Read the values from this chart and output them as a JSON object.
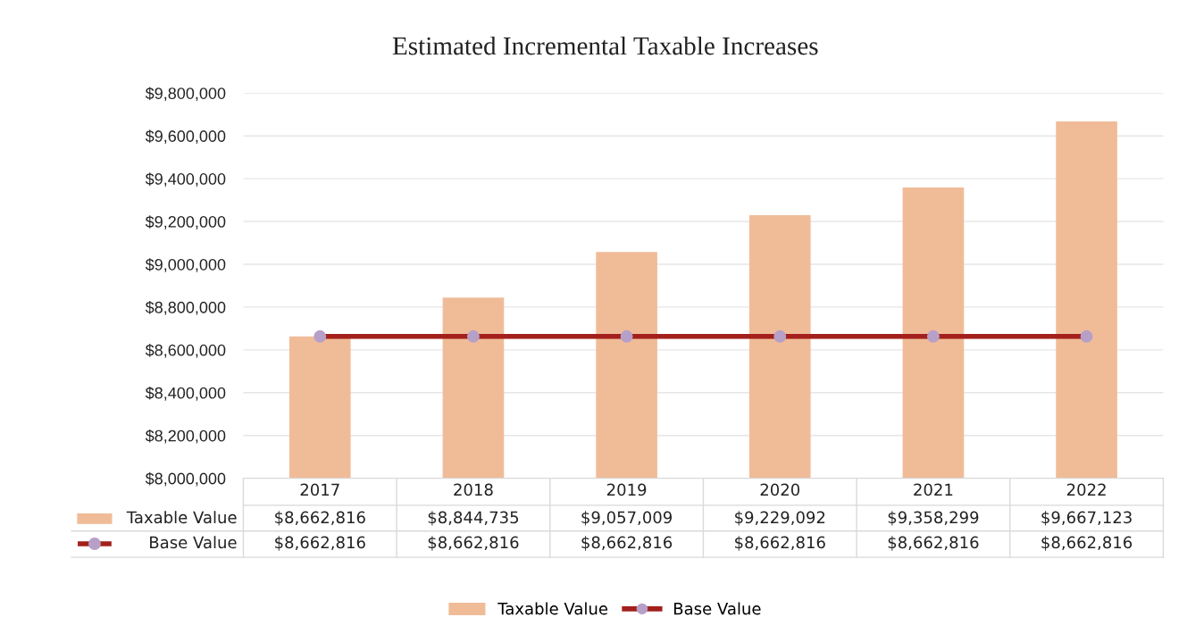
{
  "chart_data": {
    "type": "bar",
    "title": "Estimated Incremental Taxable Increases",
    "categories": [
      "2017",
      "2018",
      "2019",
      "2020",
      "2021",
      "2022"
    ],
    "series": [
      {
        "name": "Taxable Value",
        "color": "#f0bc98",
        "values": [
          8662816,
          8844735,
          9057009,
          9229092,
          9358299,
          9667123
        ],
        "value_labels": [
          "$8,662,816",
          "$8,844,735",
          "$9,057,009",
          "$9,229,092",
          "$9,358,299",
          "$9,667,123"
        ]
      },
      {
        "name": "Base Value",
        "type": "line",
        "color": "#a3201c",
        "marker": "circle",
        "values": [
          8662816,
          8662816,
          8662816,
          8662816,
          8662816,
          8662816
        ],
        "value_labels": [
          "$8,662,816",
          "$8,662,816",
          "$8,662,816",
          "$8,662,816",
          "$8,662,816",
          "$8,662,816"
        ]
      }
    ],
    "ylim": [
      8000000,
      9800000
    ],
    "yticks": [
      {
        "value": 8000000,
        "label": "$8,000,000"
      },
      {
        "value": 8200000,
        "label": "$8,200,000"
      },
      {
        "value": 8400000,
        "label": "$8,400,000"
      },
      {
        "value": 8600000,
        "label": "$8,600,000"
      },
      {
        "value": 8800000,
        "label": "$8,800,000"
      },
      {
        "value": 9000000,
        "label": "$9,000,000"
      },
      {
        "value": 9200000,
        "label": "$9,200,000"
      },
      {
        "value": 9400000,
        "label": "$9,400,000"
      },
      {
        "value": 9600000,
        "label": "$9,600,000"
      },
      {
        "value": 9800000,
        "label": "$9,800,000"
      }
    ],
    "grid": "y",
    "legend": "bottom"
  }
}
